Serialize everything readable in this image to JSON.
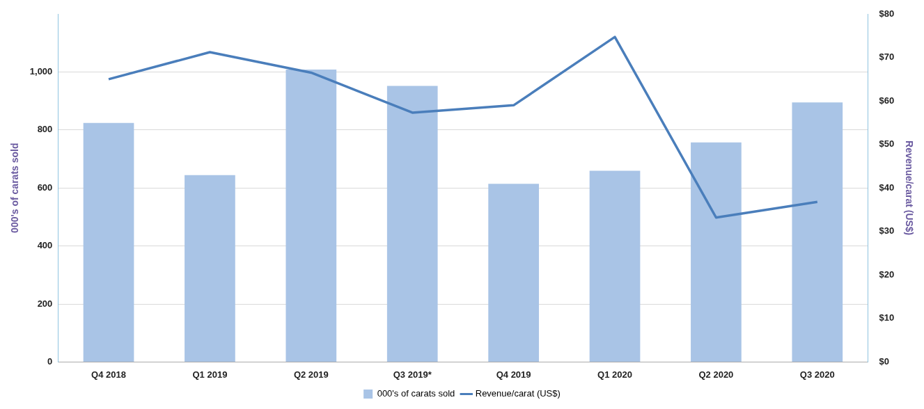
{
  "chart_data": {
    "type": "bar",
    "categories": [
      "Q4 2018",
      "Q1 2019",
      "Q2 2019",
      "Q3 2019*",
      "Q4 2019",
      "Q1 2020",
      "Q2 2020",
      "Q3 2020"
    ],
    "series": [
      {
        "name": "000's of carats sold",
        "color": "#a9c4e6",
        "values": [
          824,
          644,
          1008,
          952,
          614,
          659,
          757,
          895
        ]
      },
      {
        "name": "Revenue/carat (US$)",
        "type": "line",
        "axis": "y2",
        "color": "#4a7ebb",
        "values": [
          65,
          71.2,
          66.5,
          57.3,
          59,
          74.7,
          33.2,
          36.8
        ]
      }
    ],
    "ylabel": "000's of carats sold",
    "y2label": "Revenue/carat (US$)",
    "ylim": [
      0,
      1200
    ],
    "yticks": [
      0,
      200,
      400,
      600,
      800,
      {
        "value": 1000,
        "label": "1,000"
      }
    ],
    "y2lim": [
      0,
      80
    ],
    "y2ticks": [
      {
        "value": 0,
        "label": "$0"
      },
      {
        "value": 10,
        "label": "$10"
      },
      {
        "value": 20,
        "label": "$20"
      },
      {
        "value": 30,
        "label": "$30"
      },
      {
        "value": 40,
        "label": "$40"
      },
      {
        "value": 50,
        "label": "$50"
      },
      {
        "value": 60,
        "label": "$60"
      },
      {
        "value": 70,
        "label": "$70"
      },
      {
        "value": 80,
        "label": "$80"
      }
    ],
    "grid": "y",
    "legend": "bottom",
    "marker": "none"
  }
}
